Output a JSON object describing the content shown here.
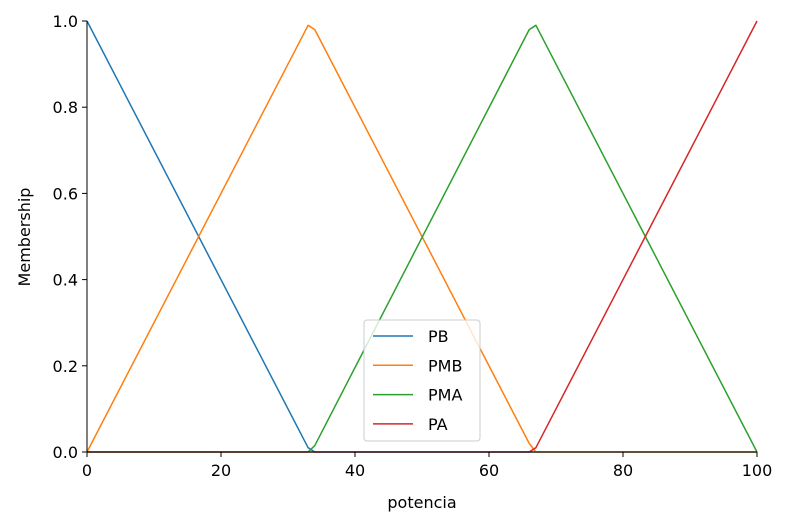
{
  "chart_data": {
    "type": "line",
    "title": "",
    "xlabel": "potencia",
    "ylabel": "Membership",
    "xlim": [
      0,
      100
    ],
    "ylim": [
      0,
      1.0
    ],
    "x_ticks": [
      "0",
      "20",
      "40",
      "60",
      "80",
      "100"
    ],
    "y_ticks": [
      "0.0",
      "0.2",
      "0.4",
      "0.6",
      "0.8",
      "1.0"
    ],
    "grid": false,
    "legend_position": "bottom-center",
    "series": [
      {
        "name": "PB",
        "color": "#1f77b4",
        "x": [
          0,
          33,
          34,
          100
        ],
        "y": [
          1.0,
          0.01,
          0.0,
          0.0
        ]
      },
      {
        "name": "PMB",
        "color": "#ff7f0e",
        "x": [
          0,
          33,
          34,
          66,
          67,
          100
        ],
        "y": [
          0.0,
          0.99,
          0.98,
          0.02,
          0.0,
          0.0
        ]
      },
      {
        "name": "PMA",
        "color": "#2ca02c",
        "x": [
          0,
          33,
          34,
          66,
          67,
          100
        ],
        "y": [
          0.0,
          0.0,
          0.015,
          0.98,
          0.99,
          0.0
        ]
      },
      {
        "name": "PA",
        "color": "#d62728",
        "x": [
          0,
          66,
          67,
          100
        ],
        "y": [
          0.0,
          0.0,
          0.01,
          1.0
        ]
      }
    ]
  }
}
